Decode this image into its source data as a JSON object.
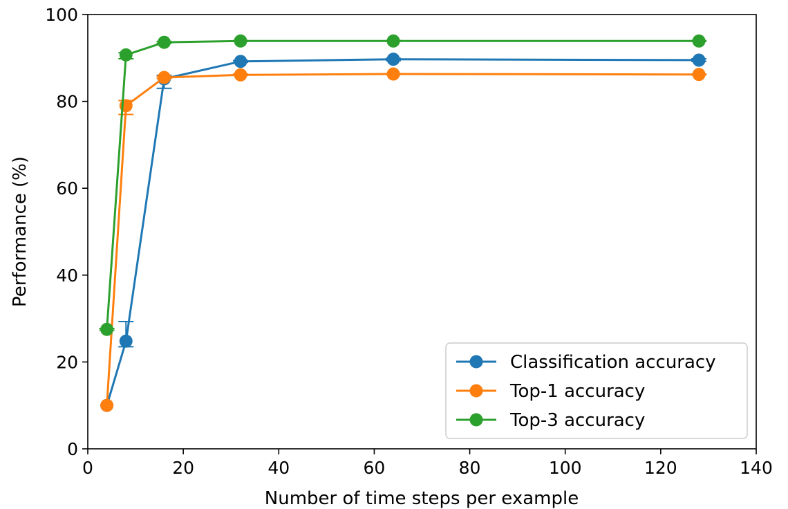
{
  "chart_data": {
    "type": "line",
    "title": "",
    "xlabel": "Number of time steps per example",
    "ylabel": "Performance (%)",
    "xlim": [
      0,
      140
    ],
    "ylim": [
      0,
      100
    ],
    "xticks": [
      "0",
      "20",
      "40",
      "60",
      "80",
      "100",
      "120",
      "140"
    ],
    "yticks": [
      "0",
      "20",
      "40",
      "60",
      "80",
      "100"
    ],
    "grid": false,
    "legend_position": "lower-right",
    "x": [
      4,
      8,
      16,
      32,
      64,
      128
    ],
    "series": [
      {
        "name": "Classification accuracy",
        "color": "#1f77b4",
        "values": [
          10,
          24.8,
          85.2,
          89.2,
          89.7,
          89.5
        ],
        "err_low": [
          10,
          23.5,
          83.0,
          89.0,
          89.4,
          89.2
        ],
        "err_high": [
          10,
          29.3,
          86.0,
          89.4,
          89.9,
          89.8
        ]
      },
      {
        "name": "Top-1 accuracy",
        "color": "#ff7f0e",
        "values": [
          10,
          79.0,
          85.5,
          86.1,
          86.3,
          86.2
        ],
        "err_low": [
          10,
          77.0,
          85.3,
          86.0,
          86.2,
          86.1
        ],
        "err_high": [
          10,
          80.2,
          85.8,
          86.3,
          86.4,
          86.3
        ]
      },
      {
        "name": "Top-3 accuracy",
        "color": "#2ca02c",
        "values": [
          27.5,
          90.7,
          93.6,
          93.9,
          93.9,
          93.9
        ],
        "err_low": [
          27.3,
          89.8,
          93.4,
          93.8,
          93.8,
          93.8
        ],
        "err_high": [
          27.7,
          91.2,
          93.8,
          94.0,
          94.0,
          94.0
        ]
      }
    ]
  }
}
